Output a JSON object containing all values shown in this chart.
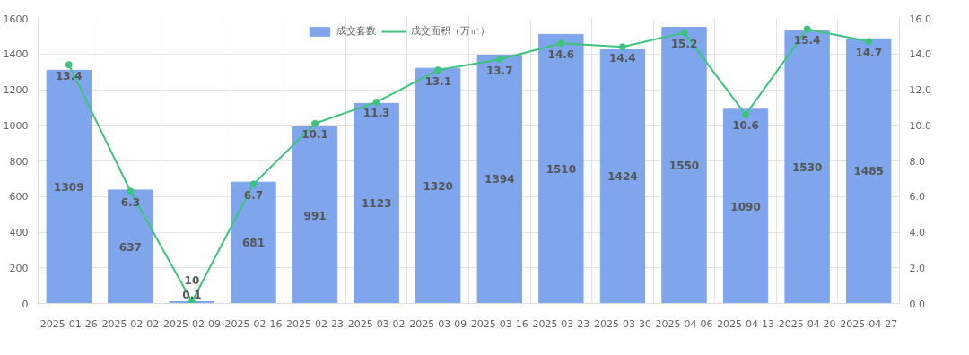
{
  "chart_data": {
    "type": "bar",
    "categories": [
      "2025-01-26",
      "2025-02-02",
      "2025-02-09",
      "2025-02-16",
      "2025-02-23",
      "2025-03-02",
      "2025-03-09",
      "2025-03-16",
      "2025-03-23",
      "2025-03-30",
      "2025-04-06",
      "2025-04-13",
      "2025-04-20",
      "2025-04-27"
    ],
    "series": [
      {
        "name": "成交套数",
        "color": "#7fa6ec",
        "values": [
          1309,
          637,
          10,
          681,
          991,
          1123,
          1320,
          1394,
          1510,
          1424,
          1550,
          1090,
          1530,
          1485
        ]
      },
      {
        "name": "成交面积（万㎡）",
        "type": "line",
        "axis": "y2",
        "color": "#3cc47c",
        "values": [
          13.4,
          6.3,
          0.1,
          6.7,
          10.1,
          11.3,
          13.1,
          13.7,
          14.6,
          14.4,
          15.2,
          10.6,
          15.4,
          14.7
        ]
      }
    ],
    "ylim": [
      0,
      1600
    ],
    "yticks": [
      0,
      200,
      400,
      600,
      800,
      1000,
      1200,
      1400,
      1600
    ],
    "y2lim": [
      0,
      16
    ],
    "y2ticks": [
      {
        "value": 0,
        "label": "0.0"
      },
      {
        "value": 2,
        "label": "2.0"
      },
      {
        "value": 4,
        "label": "4.0"
      },
      {
        "value": 6,
        "label": "6.0"
      },
      {
        "value": 8,
        "label": "8.0"
      },
      {
        "value": 10,
        "label": "10.0"
      },
      {
        "value": 12,
        "label": "12.0"
      },
      {
        "value": 14,
        "label": "14.0"
      },
      {
        "value": 16,
        "label": "16.0"
      }
    ],
    "grid": true,
    "legend": "top",
    "marker": "circle",
    "line_style": "solid",
    "data_labels": true
  }
}
